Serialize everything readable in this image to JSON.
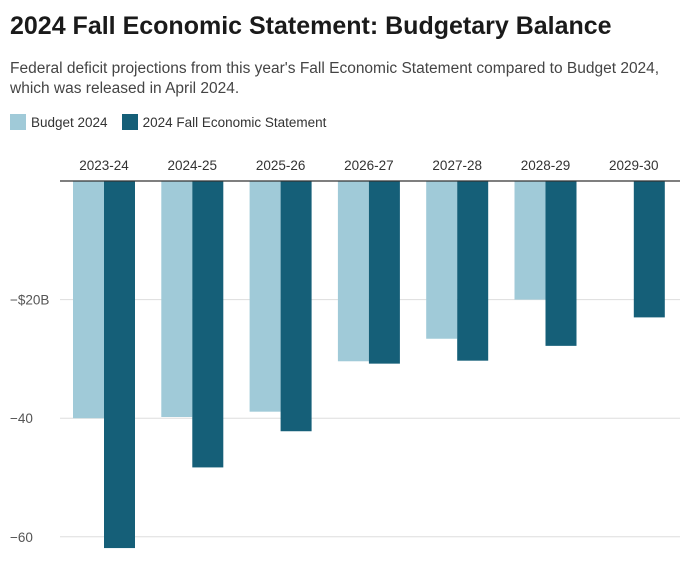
{
  "title": "2024 Fall Economic Statement: Budgetary Balance",
  "subtitle": "Federal deficit projections from this year's Fall Economic Statement compared to Budget 2024, which was released in April 2024.",
  "colors": {
    "budget_2024": "#a0cad8",
    "fall_statement": "#155f78",
    "grid": "#dddddd",
    "axis": "#333333",
    "tick_text": "#555555"
  },
  "chart_data": {
    "type": "bar",
    "title": "2024 Fall Economic Statement: Budgetary Balance",
    "categories": [
      "2023-24",
      "2024-25",
      "2025-26",
      "2026-27",
      "2027-28",
      "2028-29",
      "2029-30"
    ],
    "series": [
      {
        "name": "Budget 2024",
        "values": [
          -40.0,
          -39.8,
          -38.9,
          -30.4,
          -26.6,
          -20.0,
          null
        ]
      },
      {
        "name": "2024 Fall Economic Statement",
        "values": [
          -61.9,
          -48.3,
          -42.2,
          -30.8,
          -30.3,
          -27.8,
          -23.0
        ]
      }
    ],
    "ylim": [
      -62,
      0
    ],
    "yticks": [
      {
        "value": -20,
        "label": "−$20B"
      },
      {
        "value": -40,
        "label": "−40"
      },
      {
        "value": -60,
        "label": "−60"
      }
    ],
    "xlabel": "",
    "ylabel": "",
    "grid": true,
    "legend_position": "top-left",
    "x_axis_position": "top"
  }
}
